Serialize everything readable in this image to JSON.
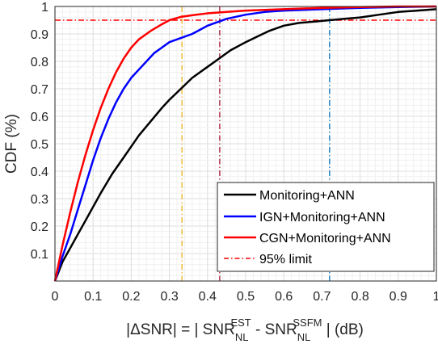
{
  "chart_data": {
    "type": "line",
    "xlabel": {
      "prefix": "|",
      "delta": "Δ",
      "snr1": "SNR| = | SNR",
      "sub1": "NL",
      "sup1": "EST",
      "dash": " - SNR",
      "sub2": "NL",
      "sup2": "SSFM",
      "suffix": " | (dB)"
    },
    "ylabel": "CDF (%)",
    "xlim": [
      0,
      1
    ],
    "ylim": [
      0,
      1
    ],
    "xticks": [
      "0",
      "0.1",
      "0.2",
      "0.3",
      "0.4",
      "0.5",
      "0.6",
      "0.7",
      "0.8",
      "0.9",
      "1"
    ],
    "yticks": [
      "0.1",
      "0.2",
      "0.3",
      "0.4",
      "0.5",
      "0.6",
      "0.7",
      "0.8",
      "0.9",
      "1"
    ],
    "grid": true,
    "legend_position": "lower-right",
    "series": [
      {
        "name": "Monitoring+ANN",
        "color": "#000000",
        "x": [
          0,
          0.02,
          0.04,
          0.06,
          0.08,
          0.1,
          0.12,
          0.15,
          0.18,
          0.2,
          0.22,
          0.25,
          0.28,
          0.3,
          0.33,
          0.36,
          0.4,
          0.43,
          0.46,
          0.5,
          0.53,
          0.56,
          0.6,
          0.64,
          0.68,
          0.72,
          0.76,
          0.8,
          0.85,
          0.9,
          0.95,
          1.0
        ],
        "y": [
          0,
          0.07,
          0.12,
          0.17,
          0.22,
          0.27,
          0.32,
          0.39,
          0.45,
          0.49,
          0.53,
          0.58,
          0.63,
          0.66,
          0.7,
          0.74,
          0.78,
          0.81,
          0.84,
          0.87,
          0.89,
          0.91,
          0.93,
          0.94,
          0.945,
          0.95,
          0.955,
          0.96,
          0.97,
          0.98,
          0.985,
          0.99
        ]
      },
      {
        "name": "IGN+Monitoring+ANN",
        "color": "#0000ff",
        "x": [
          0,
          0.02,
          0.04,
          0.06,
          0.08,
          0.1,
          0.12,
          0.14,
          0.16,
          0.18,
          0.2,
          0.22,
          0.24,
          0.26,
          0.28,
          0.3,
          0.33,
          0.36,
          0.4,
          0.45,
          0.5,
          0.55,
          0.6,
          0.7,
          0.8,
          0.9,
          1.0
        ],
        "y": [
          0,
          0.09,
          0.17,
          0.26,
          0.35,
          0.44,
          0.52,
          0.59,
          0.65,
          0.7,
          0.74,
          0.77,
          0.8,
          0.83,
          0.85,
          0.87,
          0.885,
          0.9,
          0.93,
          0.955,
          0.97,
          0.98,
          0.985,
          0.99,
          0.995,
          0.998,
          1.0
        ]
      },
      {
        "name": "CGN+Monitoring+ANN",
        "color": "#ff0000",
        "x": [
          0,
          0.02,
          0.04,
          0.06,
          0.08,
          0.1,
          0.12,
          0.14,
          0.16,
          0.18,
          0.2,
          0.22,
          0.25,
          0.28,
          0.3,
          0.33,
          0.36,
          0.4,
          0.45,
          0.5,
          0.6,
          0.7,
          0.8,
          0.9,
          1.0
        ],
        "y": [
          0,
          0.13,
          0.25,
          0.36,
          0.46,
          0.55,
          0.63,
          0.7,
          0.76,
          0.81,
          0.85,
          0.88,
          0.91,
          0.935,
          0.95,
          0.962,
          0.968,
          0.975,
          0.98,
          0.985,
          0.99,
          0.995,
          0.998,
          1.0,
          1.0
        ]
      }
    ],
    "reference_lines": [
      {
        "kind": "horizontal",
        "value": 0.95,
        "color": "#ff0000",
        "label": "95% limit"
      },
      {
        "kind": "vertical",
        "value": 0.333,
        "color": "#edb120"
      },
      {
        "kind": "vertical",
        "value": 0.432,
        "color": "#a2142f"
      },
      {
        "kind": "vertical",
        "value": 0.72,
        "color": "#0072bd"
      }
    ]
  }
}
